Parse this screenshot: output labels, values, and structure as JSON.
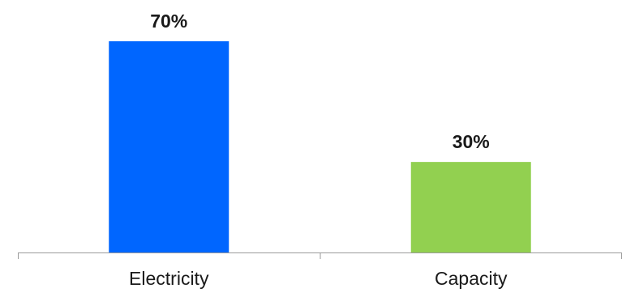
{
  "chart_data": {
    "type": "bar",
    "categories": [
      "Electricity",
      "Capacity"
    ],
    "values": [
      70,
      30
    ],
    "data_labels": [
      "70%",
      "30%"
    ],
    "bar_colors": [
      "#0066ff",
      "#92d050"
    ],
    "axis_color": "#9a9a9a",
    "ylim": [
      0,
      70
    ],
    "grid": false,
    "legend": "none"
  }
}
